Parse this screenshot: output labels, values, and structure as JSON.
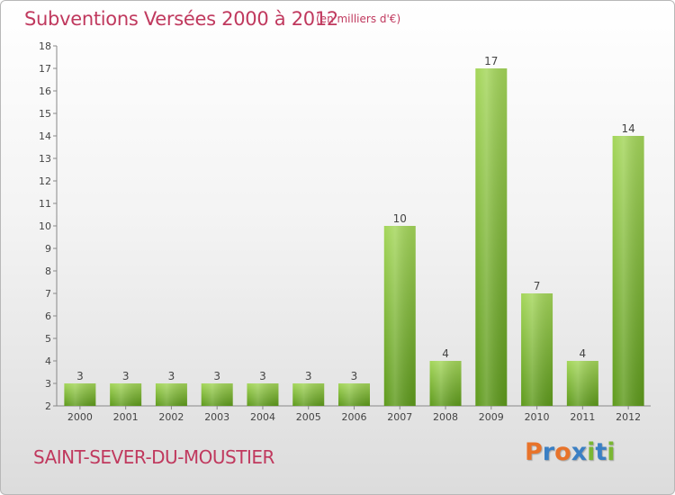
{
  "header": {
    "title": "Subventions Versées 2000 à 2012",
    "unit": "(en milliers d'€)"
  },
  "footer": {
    "commune": "SAINT-SEVER-DU-MOUSTIER",
    "logo": "Proxiti"
  },
  "colors": {
    "title": "#c0395e",
    "bar_light": "#a4d65a",
    "bar_dark": "#5e9a1c",
    "logo_letters": [
      "#e8732a",
      "#3a7fc4",
      "#e8732a",
      "#3a7fc4",
      "#7ab733",
      "#3a7fc4",
      "#7ab733"
    ]
  },
  "chart_data": {
    "type": "bar",
    "title": "Subventions Versées 2000 à 2012",
    "categories": [
      "2000",
      "2001",
      "2002",
      "2003",
      "2004",
      "2005",
      "2006",
      "2007",
      "2008",
      "2009",
      "2010",
      "2011",
      "2012"
    ],
    "values": [
      3,
      3,
      3,
      3,
      3,
      3,
      3,
      10,
      4,
      17,
      7,
      4,
      14
    ],
    "ylim": [
      2,
      18
    ],
    "yticks": [
      2,
      3,
      4,
      5,
      6,
      7,
      8,
      9,
      10,
      11,
      12,
      13,
      14,
      15,
      16,
      17,
      18
    ],
    "grid": false,
    "xlabel": "",
    "ylabel": ""
  }
}
